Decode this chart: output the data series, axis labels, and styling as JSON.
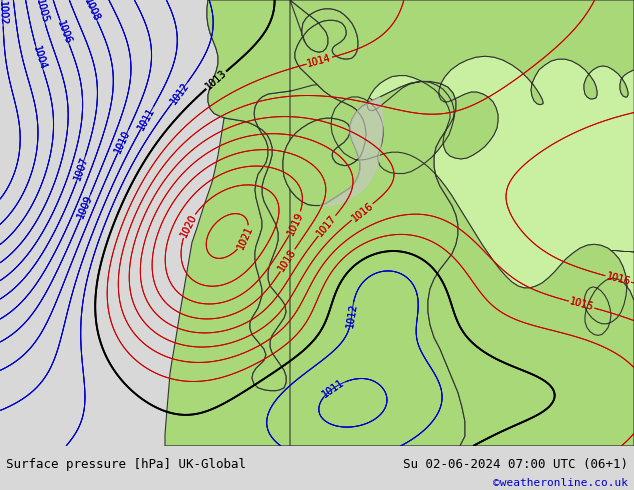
{
  "title_left": "Surface pressure [hPa] UK-Global",
  "title_right": "Su 02-06-2024 07:00 UTC (06+1)",
  "copyright": "©weatheronline.co.uk",
  "bg_color": "#dcdcdc",
  "land_color": "#a8d878",
  "land_color2": "#c8f0a0",
  "sea_color": "#d8d8d8",
  "water_color": "#a8c8e8",
  "text_color_black": "#000000",
  "text_color_blue": "#0000cc",
  "text_color_red": "#cc0000",
  "bottom_bar_color": "#d8d8d8",
  "figsize": [
    6.34,
    4.9
  ],
  "dpi": 100
}
